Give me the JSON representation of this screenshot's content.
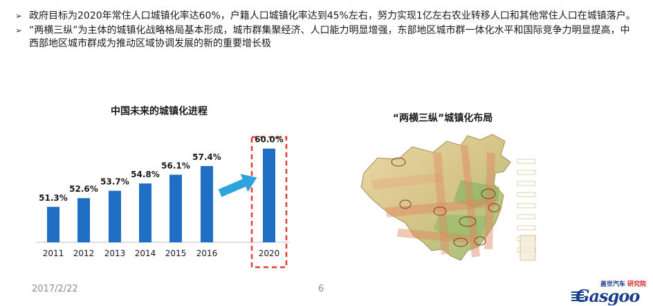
{
  "bullets": [
    "政府目标为2020年常住人口城镇化率达60%，户籍人口城镇化率达到45%左右，努力实现1亿左右农业转移人口和其他常住人口在城镇落户。",
    "“两横三纵”为主体的城镇化战略格局基本形成，城市群集聚经济、人口能力明显增强，东部地区城市群一体化水平和国际竞争力明显提高，中西部地区城市群成为推动区域协调发展的新的重要增长极"
  ],
  "bullet_mark": "➢",
  "chart_data": {
    "type": "bar",
    "title": "中国未来的城镇化进程",
    "categories": [
      "2011",
      "2012",
      "2013",
      "2014",
      "2015",
      "2016",
      "2020"
    ],
    "values": [
      51.3,
      52.6,
      53.7,
      54.8,
      56.1,
      57.4,
      60.0
    ],
    "value_labels": [
      "51.3%",
      "52.6%",
      "53.7%",
      "54.8%",
      "56.1%",
      "57.4%",
      "60.0%"
    ],
    "ylim": [
      46,
      61
    ],
    "bar_color": "#1f6fc5",
    "highlight_category": "2020",
    "highlight_color": "#e53a2f",
    "arrow_color": "#2fa3dc",
    "grid": false
  },
  "map": {
    "title": "“两横三纵”城镇化布局"
  },
  "footer": {
    "date": "2017/2/22",
    "page": "6"
  },
  "logo": {
    "top_part1": "盖世汽车",
    "top_part2": "研究院",
    "word": "Gasgoo"
  }
}
